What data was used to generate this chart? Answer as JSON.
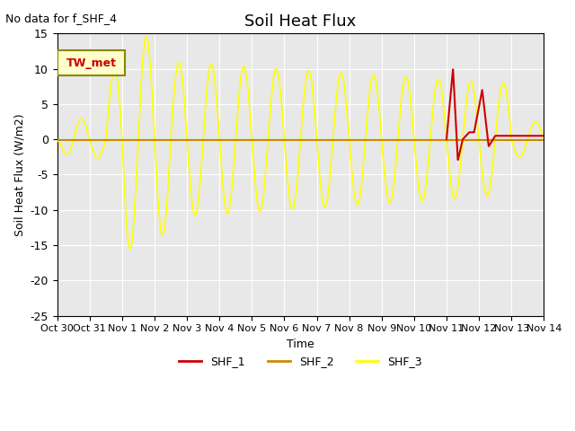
{
  "title": "Soil Heat Flux",
  "top_left_text": "No data for f_SHF_4",
  "ylabel": "Soil Heat Flux (W/m2)",
  "xlabel": "Time",
  "ylim": [
    -25,
    15
  ],
  "background_color": "#e8e8e8",
  "legend_label": "TW_met",
  "series_colors": {
    "SHF_1": "#cc0000",
    "SHF_2": "#cc8800",
    "SHF_3": "#ffff00"
  },
  "x_tick_labels": [
    "Oct 30",
    "Oct 31",
    "Nov 1",
    "Nov 2",
    "Nov 3",
    "Nov 4",
    "Nov 5",
    "Nov 6",
    "Nov 7",
    "Nov 8",
    "Nov 9",
    "Nov 10",
    "Nov 11",
    "Nov 12",
    "Nov 13",
    "Nov 14"
  ],
  "num_days": 15
}
